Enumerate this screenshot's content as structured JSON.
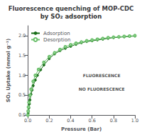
{
  "chart_data": {
    "type": "line",
    "title": "Fluorescence quenching of MOP-CDC",
    "subtitle": "by SO₂ adsorption",
    "xlabel": "Pressure (Bar)",
    "ylabel": "SO₂ Uptake (mmol g⁻¹)",
    "xlim": [
      0,
      1.0
    ],
    "ylim": [
      0,
      2.25
    ],
    "xticks": [
      {
        "value": 0.0,
        "label": "0.0"
      },
      0.2,
      0.4,
      0.6,
      0.8,
      {
        "value": 1.0,
        "label": "1.0"
      }
    ],
    "yticks": [
      {
        "value": 0.0,
        "label": "0.0"
      },
      0.5,
      {
        "value": 1.0,
        "label": "1.0"
      },
      1.5,
      {
        "value": 2.0,
        "label": "2.0"
      }
    ],
    "grid": false,
    "legend": "upper left",
    "annotations": [
      "FLUORESCENCE",
      "NO FLUORESCENCE"
    ],
    "series": [
      {
        "name": "Adsorption",
        "color": "#1a6e1a",
        "marker": "filled circle",
        "x": [
          0.0,
          0.003,
          0.006,
          0.01,
          0.015,
          0.02,
          0.03,
          0.04,
          0.05,
          0.07,
          0.09,
          0.12,
          0.15,
          0.2,
          0.25,
          0.3,
          0.35,
          0.4,
          0.45,
          0.5,
          0.55,
          0.6,
          0.65,
          0.7,
          0.75,
          0.8,
          0.85,
          0.9,
          0.95,
          1.0
        ],
        "values": [
          0.0,
          0.05,
          0.1,
          0.18,
          0.28,
          0.38,
          0.52,
          0.63,
          0.74,
          0.88,
          1.0,
          1.14,
          1.26,
          1.42,
          1.54,
          1.62,
          1.68,
          1.73,
          1.78,
          1.82,
          1.85,
          1.87,
          1.89,
          1.91,
          1.93,
          1.95,
          1.96,
          1.97,
          1.98,
          1.99
        ]
      },
      {
        "name": "Desorption",
        "color": "#6abf6a",
        "marker": "open circle",
        "x": [
          0.0,
          0.003,
          0.006,
          0.01,
          0.02,
          0.03,
          0.05,
          0.07,
          0.1,
          0.15,
          0.2,
          0.25,
          0.3,
          0.35,
          0.4,
          0.45,
          0.5,
          0.55,
          0.6,
          0.65,
          0.7,
          0.75,
          0.8,
          0.85,
          0.9,
          0.95,
          1.0
        ],
        "values": [
          0.0,
          0.1,
          0.2,
          0.32,
          0.5,
          0.65,
          0.85,
          1.0,
          1.15,
          1.33,
          1.47,
          1.57,
          1.65,
          1.72,
          1.77,
          1.81,
          1.84,
          1.87,
          1.89,
          1.91,
          1.93,
          1.95,
          1.96,
          1.97,
          1.98,
          1.99,
          2.0
        ]
      }
    ]
  }
}
